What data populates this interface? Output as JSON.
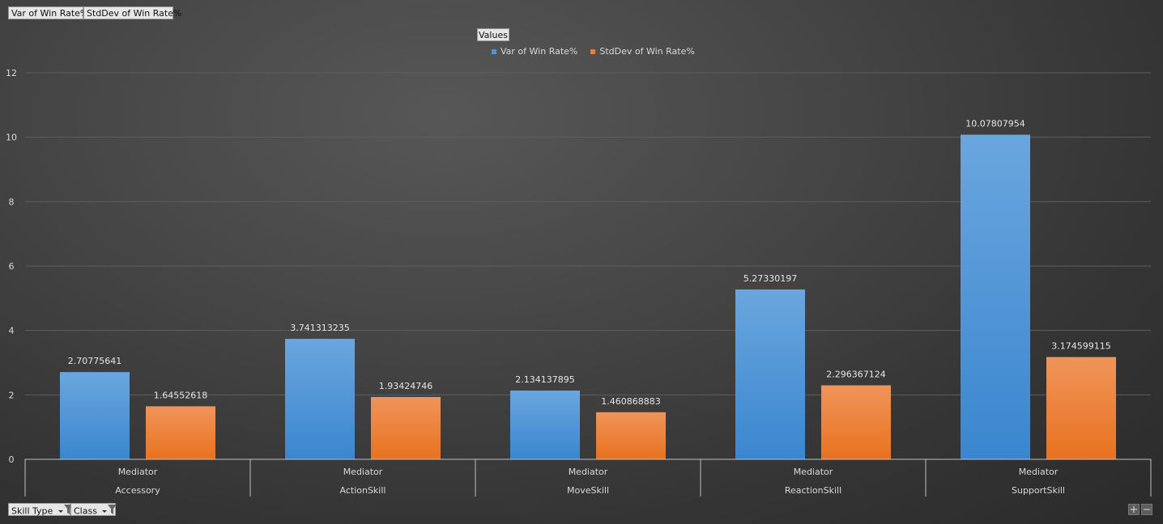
{
  "field_buttons": {
    "var_label": "Var of Win Rate%",
    "std_label": "StdDev of Win Rate%",
    "values_label": "Values",
    "skill_type_label": "Skill Type",
    "class_label": "Class"
  },
  "zoom": {
    "in_label": "+",
    "out_label": "−"
  },
  "chart_data": {
    "type": "bar",
    "categories": [
      {
        "inner": "Mediator",
        "outer": "Accessory"
      },
      {
        "inner": "Mediator",
        "outer": "ActionSkill"
      },
      {
        "inner": "Mediator",
        "outer": "MoveSkill"
      },
      {
        "inner": "Mediator",
        "outer": "ReactionSkill"
      },
      {
        "inner": "Mediator",
        "outer": "SupportSkill"
      }
    ],
    "series": [
      {
        "name": "Var of Win Rate%",
        "color": "#4f94d6",
        "values": [
          2.70775641,
          3.741313235,
          2.134137895,
          5.27330197,
          10.07807954
        ],
        "labels": [
          "2.70775641",
          "3.741313235",
          "2.134137895",
          "5.27330197",
          "10.07807954"
        ]
      },
      {
        "name": "StdDev of Win Rate%",
        "color": "#ed7d31",
        "values": [
          1.64552618,
          1.93424746,
          1.460868883,
          2.296367124,
          3.174599115
        ],
        "labels": [
          "1.64552618",
          "1.93424746",
          "1.460868883",
          "2.296367124",
          "3.174599115"
        ]
      }
    ],
    "ylim": [
      0,
      12
    ],
    "yticks": [
      "0",
      "2",
      "4",
      "6",
      "8",
      "10",
      "12"
    ],
    "grid": true,
    "legend_position": "top-center"
  }
}
